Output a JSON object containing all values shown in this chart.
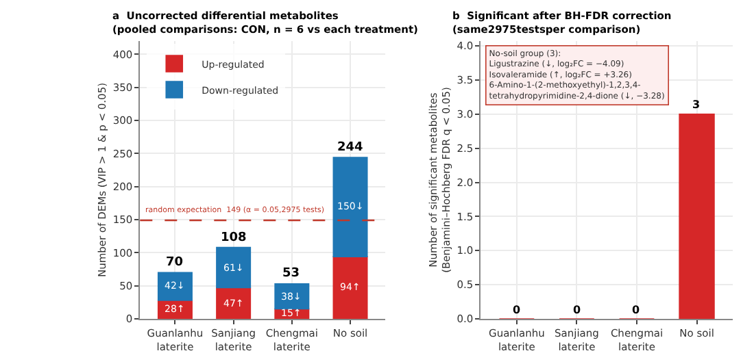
{
  "chart_data": [
    {
      "type": "bar",
      "title": "a  Uncorrected differential metabolites\n(pooled comparisons: CON, n = 6 vs each treatment)",
      "ylabel": "Number of DEMs (VIP > 1 & p < 0.05)",
      "categories": [
        "Guanlanhu\nlaterite",
        "Sanjiang\nlaterite",
        "Chengmai\nlaterite",
        "No soil"
      ],
      "stacked": true,
      "series": [
        {
          "name": "Up-regulated",
          "color": "#d62728",
          "values": [
            28,
            47,
            15,
            94
          ],
          "value_labels": [
            "28↑",
            "47↑",
            "15↑",
            "94↑"
          ]
        },
        {
          "name": "Down-regulated",
          "color": "#1f77b4",
          "values": [
            42,
            61,
            38,
            150
          ],
          "value_labels": [
            "42↓",
            "61↓",
            "38↓",
            "150↓"
          ]
        }
      ],
      "totals": [
        "70",
        "108",
        "53",
        "244"
      ],
      "ref_lines": [
        {
          "axis": "y",
          "value": 149,
          "label": "random expectation  149 (α = 0.05,2975 tests)",
          "color": "#c0392b",
          "line_style": "dashed"
        }
      ],
      "ylim": [
        0,
        420
      ],
      "yticks": [
        0,
        50,
        100,
        150,
        200,
        250,
        300,
        350,
        400
      ],
      "grid": true,
      "legend": "top left"
    },
    {
      "type": "bar",
      "title": "b  Significant after BH-FDR correction\n(same2975testsper comparison)",
      "ylabel": "Number of significant metabolites\n(Benjamini–Hochberg FDR q < 0.05)",
      "categories": [
        "Guanlanhu\nlaterite",
        "Sanjiang\nlaterite",
        "Chengmai\nlaterite",
        "No soil"
      ],
      "values": [
        0,
        0,
        0,
        3
      ],
      "color": "#d62728",
      "data_labels": true,
      "annotations": [
        "No-soil group (3):\nLigustrazine (↓, log₂FC = −4.09)\nIsovaleramide (↑, log₂FC = +3.26)\n6-Amino-1-(2-methoxyethyl)-1,2,3,4-\ntetrahydropyrimidine-2,4-dione (↓, −3.28)"
      ],
      "ylim": [
        0,
        4.07
      ],
      "yticks": [
        {
          "value": 0,
          "label": "0.0"
        },
        0.5,
        {
          "value": 1,
          "label": "1.0"
        },
        1.5,
        {
          "value": 2,
          "label": "2.0"
        },
        2.5,
        {
          "value": 3,
          "label": "3.0"
        },
        3.5,
        {
          "value": 4,
          "label": "4.0"
        }
      ],
      "grid": true
    }
  ]
}
